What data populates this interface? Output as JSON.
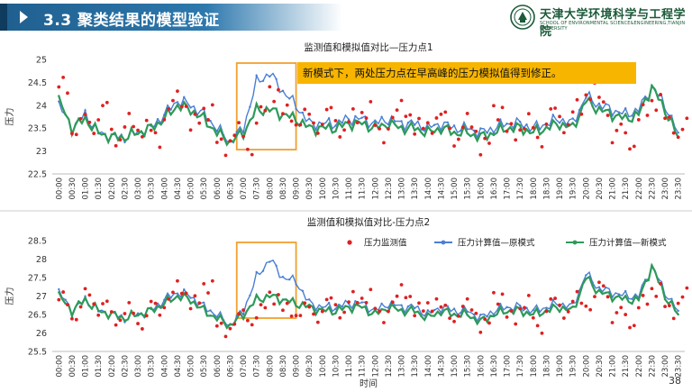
{
  "header": {
    "title": "3.3 聚类结果的模型验证",
    "org_name_cn": "天津大学环境科学与工程学院",
    "org_name_en": "SCHOOL OF ENVIRONMENTAL SCIENCE&ENGINEERING,TIANJIN UNIVERSITY",
    "logo_icon": "university-seal-icon",
    "colors": {
      "title_bar": "#1f5f8f",
      "accent": "#0f3b5e",
      "brand_green": "#1c5a3a"
    }
  },
  "page_number": "38",
  "annotation": {
    "text": "新模式下，两处压力点在早高峰的压力模拟值得到修正。",
    "background": "#f7b500"
  },
  "chart_data": [
    {
      "type": "line",
      "title": "监测值和模拟值对比—压力点1",
      "ylabel": "压力",
      "xlabel": "",
      "ylim": [
        22.5,
        25
      ],
      "yticks": [
        "25",
        "24.5",
        "24",
        "23.5",
        "23",
        "22.5"
      ],
      "xticks": [
        "00:00",
        "00:30",
        "01:00",
        "01:30",
        "02:00",
        "02:30",
        "03:00",
        "03:30",
        "04:00",
        "04:30",
        "05:00",
        "05:30",
        "06:00",
        "06:30",
        "07:00",
        "07:30",
        "08:00",
        "08:30",
        "09:00",
        "09:30",
        "10:00",
        "10:30",
        "11:00",
        "11:30",
        "12:00",
        "12:30",
        "13:00",
        "13:30",
        "14:00",
        "14:30",
        "15:00",
        "15:30",
        "16:00",
        "16:30",
        "17:00",
        "17:30",
        "18:00",
        "18:30",
        "19:00",
        "19:30",
        "20:00",
        "20:30",
        "21:00",
        "21:30",
        "22:00",
        "22:30",
        "23:00",
        "23:30"
      ],
      "highlight": {
        "x_range": [
          "06:45",
          "09:00"
        ],
        "color": "#f0a030"
      },
      "series": [
        {
          "role": "monitored",
          "color": "#e02020",
          "marker": "dot",
          "values": [
            24.4,
            23.5,
            23.6,
            23.9,
            23.3,
            23.6,
            23.5,
            23.3,
            23.9,
            24.1,
            23.6,
            23.9,
            23.1,
            23.4,
            23.1,
            23.8,
            24.3,
            23.8,
            23.7,
            23.6,
            23.8,
            23.5,
            23.7,
            23.9,
            23.4,
            23.7,
            23.9,
            23.5,
            23.6,
            23.7,
            23.3,
            23.6,
            23.1,
            23.9,
            23.4,
            23.6,
            23.3,
            23.8,
            23.6,
            23.9,
            24.3,
            24.0,
            23.4,
            23.2,
            23.8,
            24.1,
            23.6,
            23.5
          ]
        },
        {
          "role": "computed_original",
          "color": "#4a7fd4",
          "marker": "line",
          "values": [
            24.0,
            23.5,
            23.8,
            23.4,
            23.3,
            23.3,
            23.4,
            23.5,
            23.8,
            24.1,
            24.0,
            23.8,
            23.5,
            23.2,
            23.5,
            24.5,
            24.7,
            24.3,
            24.0,
            23.6,
            23.6,
            23.6,
            23.7,
            23.7,
            23.6,
            23.7,
            23.6,
            23.6,
            23.5,
            23.6,
            23.5,
            23.5,
            23.4,
            23.5,
            23.6,
            23.6,
            23.5,
            23.6,
            23.7,
            23.6,
            24.2,
            24.0,
            23.9,
            23.8,
            23.9,
            24.4,
            24.0,
            23.4
          ]
        },
        {
          "role": "computed_new",
          "color": "#2e9a5a",
          "marker": "line",
          "values": [
            24.1,
            23.5,
            23.7,
            23.4,
            23.3,
            23.3,
            23.4,
            23.5,
            23.7,
            24.0,
            23.9,
            23.7,
            23.4,
            23.2,
            23.4,
            23.9,
            23.9,
            23.8,
            23.7,
            23.5,
            23.5,
            23.5,
            23.6,
            23.6,
            23.5,
            23.6,
            23.5,
            23.5,
            23.4,
            23.5,
            23.4,
            23.4,
            23.3,
            23.4,
            23.5,
            23.5,
            23.4,
            23.5,
            23.6,
            23.5,
            24.1,
            23.9,
            23.8,
            23.7,
            23.8,
            24.4,
            23.9,
            23.3
          ]
        }
      ]
    },
    {
      "type": "line",
      "title": "监测值和模拟值对比-压力点2",
      "ylabel": "压力",
      "xlabel": "时间",
      "ylim": [
        25.5,
        28.5
      ],
      "yticks": [
        "28.5",
        "28",
        "27.5",
        "27",
        "26.5",
        "26",
        "25.5"
      ],
      "xticks": [
        "00:00",
        "00:30",
        "01:00",
        "01:30",
        "02:00",
        "02:30",
        "03:00",
        "03:30",
        "04:00",
        "04:30",
        "05:00",
        "05:30",
        "06:00",
        "06:30",
        "07:00",
        "07:30",
        "08:00",
        "08:30",
        "09:00",
        "09:30",
        "10:00",
        "10:30",
        "11:00",
        "11:30",
        "12:00",
        "12:30",
        "13:00",
        "13:30",
        "14:00",
        "14:30",
        "15:00",
        "15:30",
        "16:00",
        "16:30",
        "17:00",
        "17:30",
        "18:00",
        "18:30",
        "19:00",
        "19:30",
        "20:00",
        "20:30",
        "21:00",
        "21:30",
        "22:00",
        "22:30",
        "23:00",
        "23:30"
      ],
      "highlight": {
        "x_range": [
          "06:45",
          "09:00"
        ],
        "color": "#f0a030"
      },
      "legend": {
        "placement": "top-right",
        "entries": [
          "压力监测值",
          "压力计算值—原模式",
          "压力计算值—新模式"
        ]
      },
      "series": [
        {
          "name": "压力监测值",
          "color": "#e02020",
          "marker": "dot",
          "values": [
            26.9,
            26.5,
            27.0,
            26.7,
            26.4,
            26.6,
            26.3,
            26.7,
            26.9,
            27.2,
            26.8,
            27.3,
            26.1,
            26.3,
            26.4,
            26.6,
            27.0,
            26.6,
            26.6,
            26.5,
            26.8,
            26.6,
            26.9,
            27.0,
            26.5,
            26.8,
            27.1,
            26.6,
            26.8,
            26.6,
            26.5,
            26.7,
            26.2,
            27.0,
            26.4,
            26.8,
            26.2,
            26.8,
            26.6,
            26.9,
            26.8,
            27.2,
            26.5,
            26.3,
            26.8,
            27.2,
            26.6,
            27.0
          ]
        },
        {
          "name": "压力计算值—原模式",
          "color": "#4a7fd4",
          "marker": "line",
          "values": [
            27.1,
            26.6,
            26.9,
            26.6,
            26.5,
            26.4,
            26.5,
            26.6,
            26.9,
            27.1,
            27.0,
            26.7,
            26.5,
            26.2,
            26.6,
            27.5,
            28.0,
            27.5,
            27.4,
            26.8,
            26.7,
            26.7,
            26.8,
            26.8,
            26.6,
            26.8,
            26.7,
            26.7,
            26.5,
            26.7,
            26.6,
            26.6,
            26.4,
            26.6,
            26.7,
            26.7,
            26.6,
            26.7,
            26.8,
            26.7,
            27.6,
            27.2,
            27.1,
            27.0,
            27.0,
            27.8,
            27.1,
            26.6
          ]
        },
        {
          "name": "压力计算值—新模式",
          "color": "#2e9a5a",
          "marker": "line",
          "values": [
            27.0,
            26.6,
            26.9,
            26.6,
            26.5,
            26.4,
            26.5,
            26.6,
            26.8,
            27.0,
            26.9,
            26.6,
            26.4,
            26.2,
            26.5,
            26.9,
            27.0,
            26.9,
            26.8,
            26.7,
            26.6,
            26.6,
            26.7,
            26.7,
            26.5,
            26.7,
            26.6,
            26.6,
            26.4,
            26.6,
            26.5,
            26.5,
            26.3,
            26.5,
            26.6,
            26.6,
            26.5,
            26.6,
            26.7,
            26.6,
            27.5,
            27.1,
            27.0,
            26.9,
            26.9,
            27.8,
            27.0,
            26.5
          ]
        }
      ]
    }
  ]
}
